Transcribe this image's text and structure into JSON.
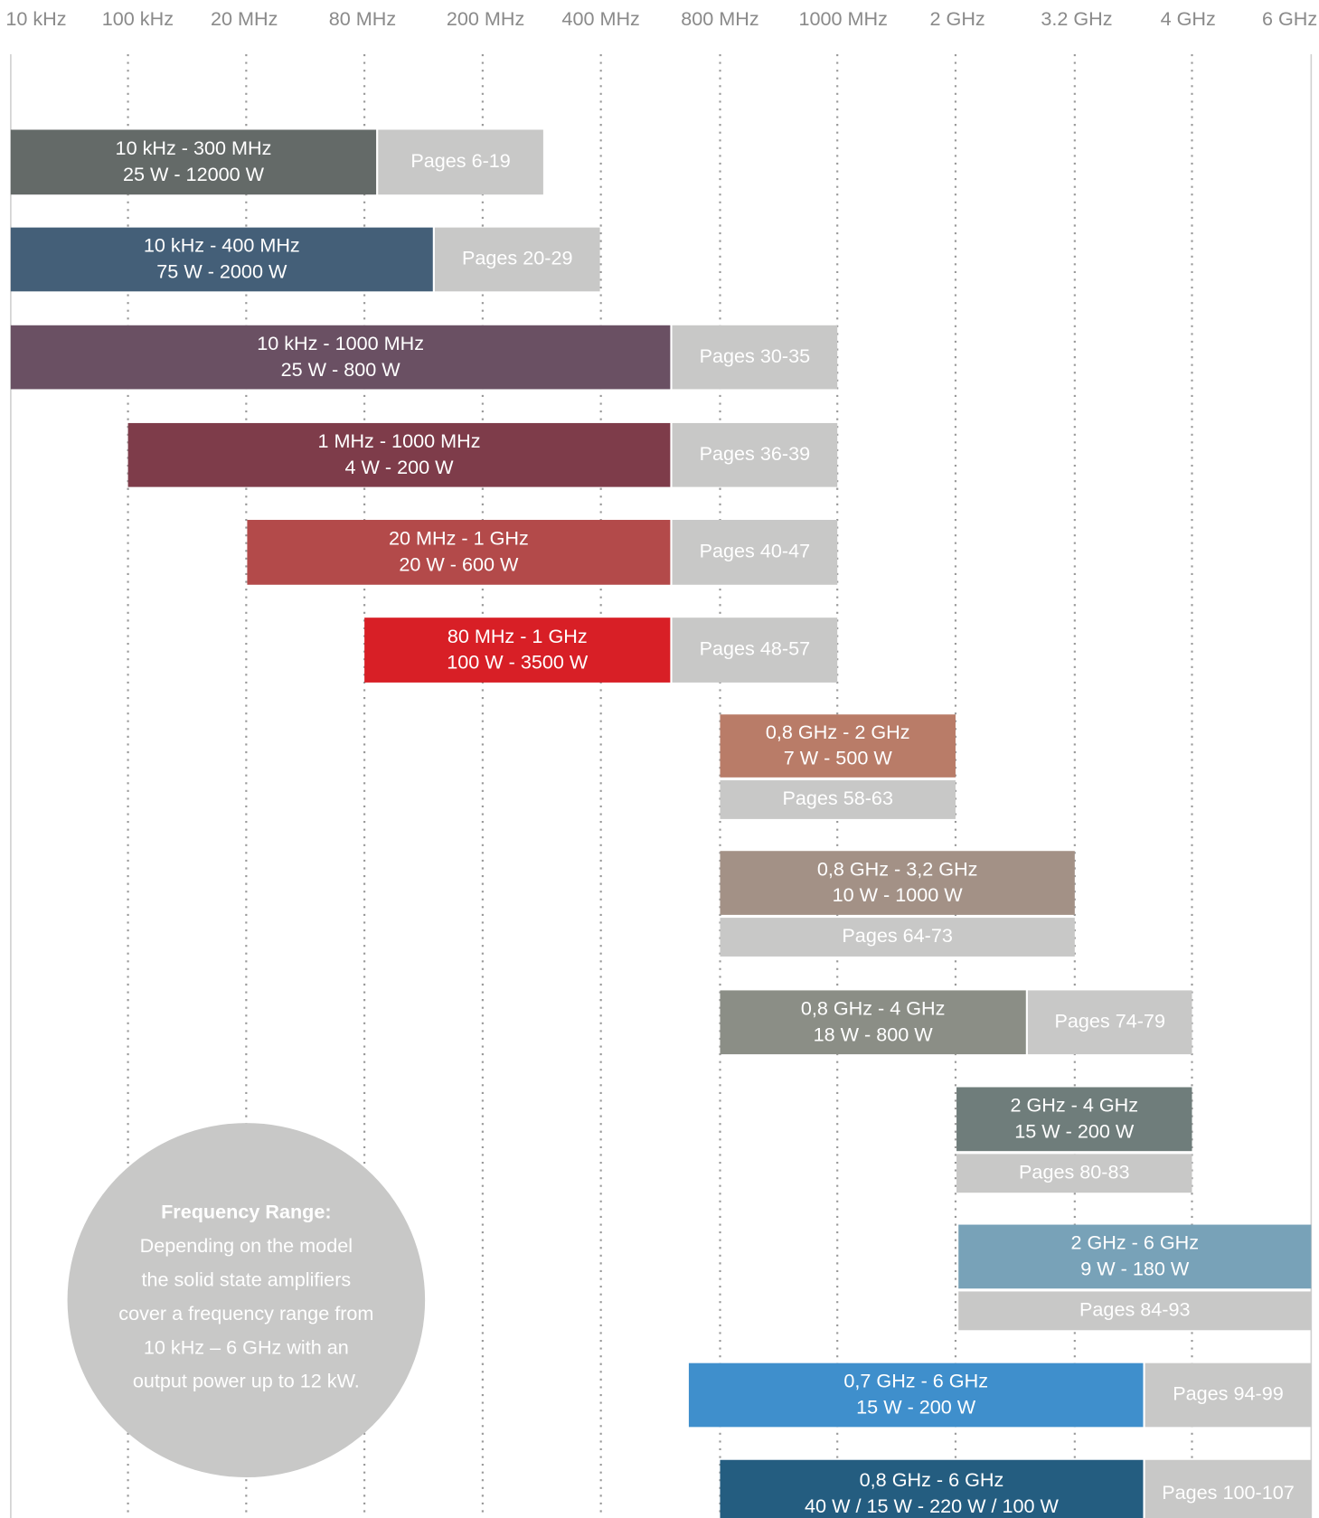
{
  "axis": [
    "10 kHz",
    "100 kHz",
    "20 MHz",
    "80 MHz",
    "200 MHz",
    "400 MHz",
    "800 MHz",
    "1000 MHz",
    "2 GHz",
    "3.2 GHz",
    "4 GHz",
    "6 GHz"
  ],
  "rows": [
    {
      "lines": [
        "10 kHz - 300 MHz",
        "25 W - 12000 W"
      ],
      "pages": "Pages 6-19",
      "color": "#646a68"
    },
    {
      "lines": [
        "10 kHz - 400 MHz",
        "75 W - 2000 W"
      ],
      "pages": "Pages 20-29",
      "color": "#445f78"
    },
    {
      "lines": [
        "10 kHz - 1000 MHz",
        "25 W - 800 W"
      ],
      "pages": "Pages 30-35",
      "color": "#6a5063"
    },
    {
      "lines": [
        "1 MHz - 1000 MHz",
        "4 W - 200 W"
      ],
      "pages": "Pages 36-39",
      "color": "#7e3c4a"
    },
    {
      "lines": [
        "20 MHz - 1 GHz",
        "20 W - 600 W"
      ],
      "pages": "Pages 40-47",
      "color": "#b34a4a"
    },
    {
      "lines": [
        "80 MHz - 1 GHz",
        "100 W - 3500 W"
      ],
      "pages": "Pages 48-57",
      "color": "#d81f26"
    },
    {
      "lines": [
        "0,8 GHz - 2 GHz",
        "7 W - 500 W"
      ],
      "pages": "Pages 58-63",
      "color": "#b97c68"
    },
    {
      "lines": [
        "0,8 GHz - 3,2 GHz",
        "10 W - 1000 W"
      ],
      "pages": "Pages 64-73",
      "color": "#a39186"
    },
    {
      "lines": [
        "0,8 GHz - 4 GHz",
        "18 W - 800 W"
      ],
      "pages": "Pages 74-79",
      "color": "#8b8e86"
    },
    {
      "lines": [
        "2 GHz - 4 GHz",
        "15 W - 200 W"
      ],
      "pages": "Pages 80-83",
      "color": "#6f7d7b"
    },
    {
      "lines": [
        "2 GHz - 6 GHz",
        "9 W - 180 W"
      ],
      "pages": "Pages 84-93",
      "color": "#78a2b8"
    },
    {
      "lines": [
        "0,7 GHz - 6 GHz",
        "15 W - 200 W"
      ],
      "pages": "Pages 94-99",
      "color": "#3f8fcc"
    },
    {
      "lines": [
        "0,8 GHz - 6 GHz",
        "40 W / 15 W - 220 W / 100 W"
      ],
      "pages": "Pages 100-107",
      "color": "#245d80"
    }
  ],
  "circle": {
    "title": "Frequency Range:",
    "lines": [
      "Depending on the model",
      "the solid state amplifiers",
      "cover a frequency range from",
      "10 kHz – 6 GHz with an",
      "output power up to 12 kW."
    ]
  }
}
